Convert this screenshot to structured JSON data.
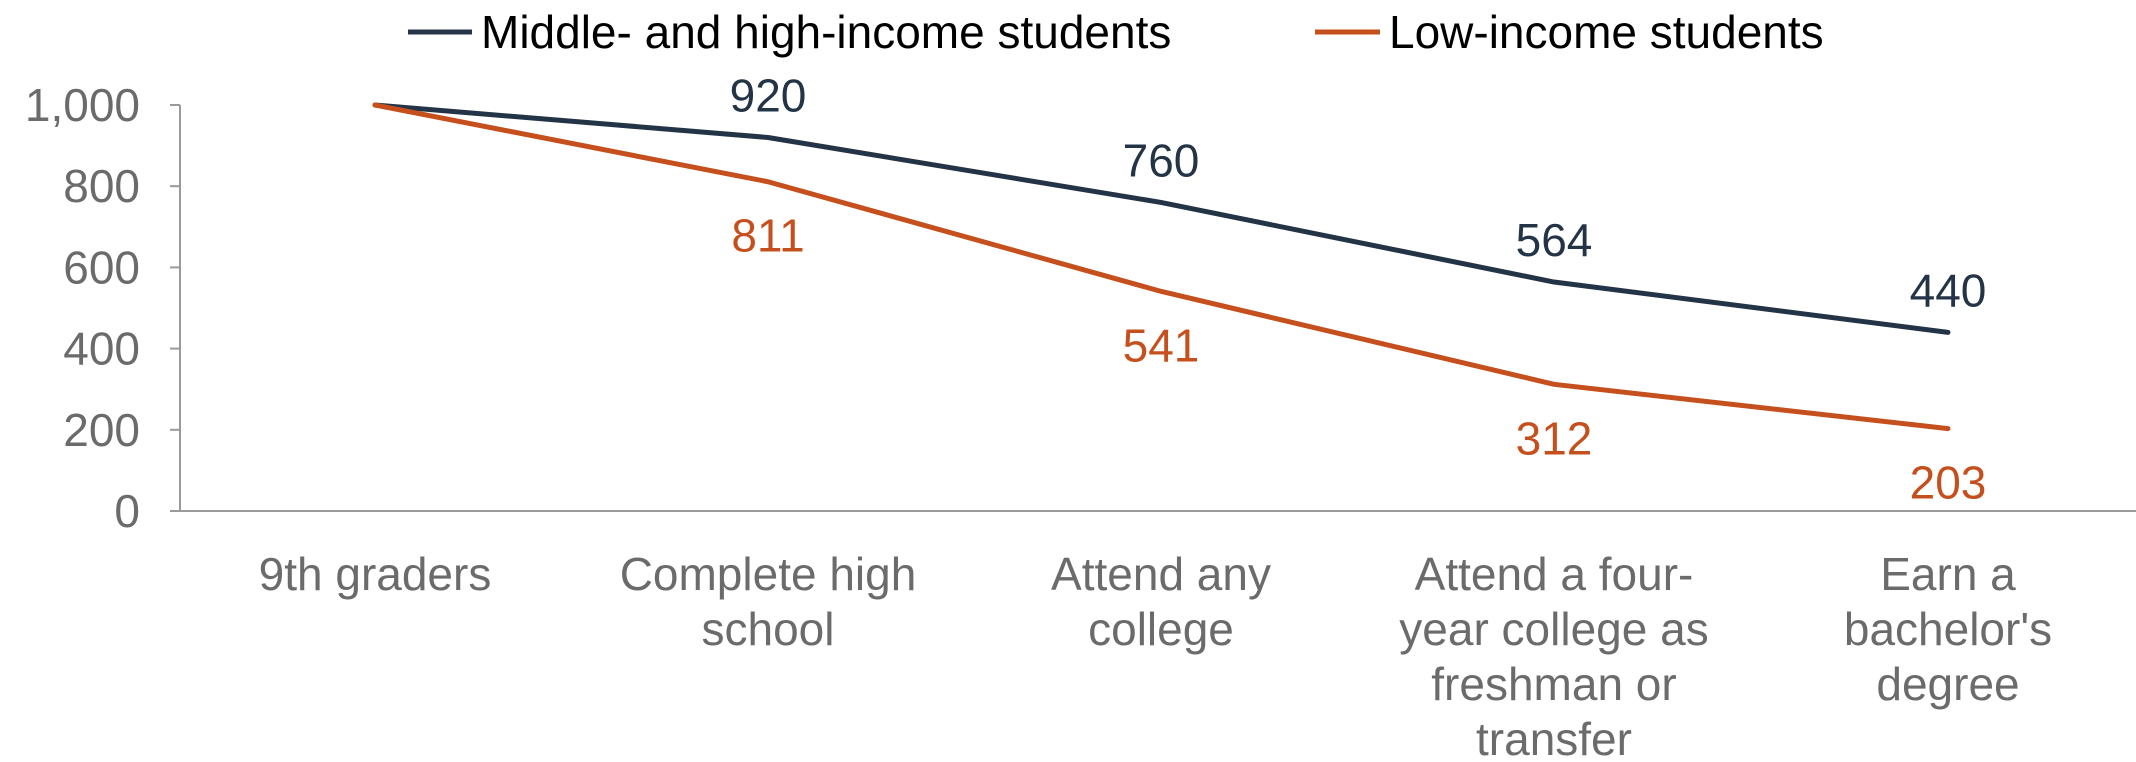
{
  "chart_data": {
    "type": "line",
    "categories": [
      "9th graders",
      "Complete high school",
      "Attend any college",
      "Attend a four-year college as freshman or transfer",
      "Earn a bachelor's degree"
    ],
    "category_label_lines": [
      [
        "9th graders"
      ],
      [
        "Complete high",
        "school"
      ],
      [
        "Attend any",
        "college"
      ],
      [
        "Attend a four-",
        "year college as",
        "freshman or",
        "transfer"
      ],
      [
        "Earn a",
        "bachelor's",
        "degree"
      ]
    ],
    "series": [
      {
        "name": "Middle- and high-income students",
        "values": [
          1000,
          920,
          760,
          564,
          440
        ],
        "labels": [
          "",
          "920",
          "760",
          "564",
          "440"
        ],
        "color": "#243447"
      },
      {
        "name": "Low-income students",
        "values": [
          1000,
          811,
          541,
          312,
          203
        ],
        "labels": [
          "",
          "811",
          "541",
          "312",
          "203"
        ],
        "color": "#c5501d"
      }
    ],
    "ylim": [
      0,
      1000
    ],
    "yticks": [
      0,
      200,
      400,
      600,
      800,
      1000
    ],
    "ytick_labels": [
      "0",
      "200",
      "400",
      "600",
      "800",
      "1,000"
    ],
    "grid": false,
    "legend_position": "top",
    "title": "",
    "xlabel": "",
    "ylabel": ""
  }
}
